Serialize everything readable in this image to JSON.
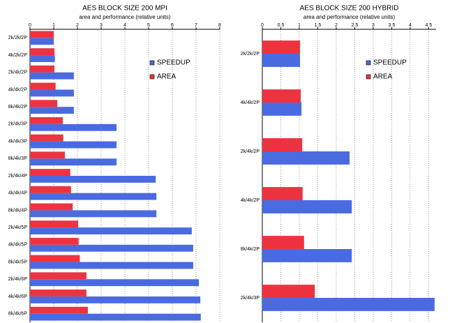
{
  "chart_data": [
    {
      "type": "bar",
      "orientation": "horizontal",
      "title": "AES BLOCK SIZE 200 MPI",
      "subtitle": "area and performance (relative units)",
      "categories": [
        "2k/2k/2P",
        "4k/2k/2P",
        "2k/4k/2P",
        "4k/4k/2P",
        "8k/4k/2P",
        "2k/4k/3P",
        "4k/4k/3P",
        "8k/4k/3P",
        "2k/4k/4P",
        "4k/4k/4P",
        "8k/4k/4P",
        "2k/4k/5P",
        "4k/4k/5P",
        "8k/4k/5P",
        "2k/4k/6P",
        "4k/4k/6P",
        "8k/4k/6P"
      ],
      "series": [
        {
          "name": "SPEEDUP",
          "color": "#4a6be0",
          "values": [
            1.0,
            1.05,
            1.85,
            1.85,
            1.85,
            3.65,
            3.65,
            3.65,
            5.3,
            5.33,
            5.33,
            6.82,
            6.88,
            6.88,
            7.12,
            7.18,
            7.2
          ]
        },
        {
          "name": "AREA",
          "color": "#ee3340",
          "values": [
            1.0,
            1.03,
            1.03,
            1.08,
            1.15,
            1.38,
            1.4,
            1.47,
            1.7,
            1.73,
            1.8,
            2.03,
            2.05,
            2.1,
            2.38,
            2.38,
            2.44
          ]
        }
      ],
      "xlim": [
        0,
        8
      ],
      "xticks": [
        0,
        1,
        2,
        3,
        4,
        5,
        6,
        7,
        8
      ],
      "grid": true,
      "legend": "upper right"
    },
    {
      "type": "bar",
      "orientation": "horizontal",
      "title": "AES BLOCK SIZE 200 HYBRID",
      "subtitle": "area and performance (relative units)",
      "categories": [
        "2k/2k/2P",
        "4k/4k/2P",
        "2k/4k/2P",
        "4k/4k/2P",
        "8k/4k/2P",
        "2k/4k/3P"
      ],
      "series": [
        {
          "name": "SPEEDUP",
          "color": "#4a6be0",
          "values": [
            1.02,
            1.06,
            2.36,
            2.42,
            2.42,
            4.66
          ]
        },
        {
          "name": "AREA",
          "color": "#ee3340",
          "values": [
            1.02,
            1.04,
            1.08,
            1.09,
            1.13,
            1.42
          ]
        }
      ],
      "xlim": [
        0,
        4.7
      ],
      "xticks": [
        0,
        0.5,
        1,
        1.5,
        2,
        2.5,
        3,
        3.5,
        4,
        4.5
      ],
      "grid": true,
      "legend": "upper right"
    }
  ]
}
